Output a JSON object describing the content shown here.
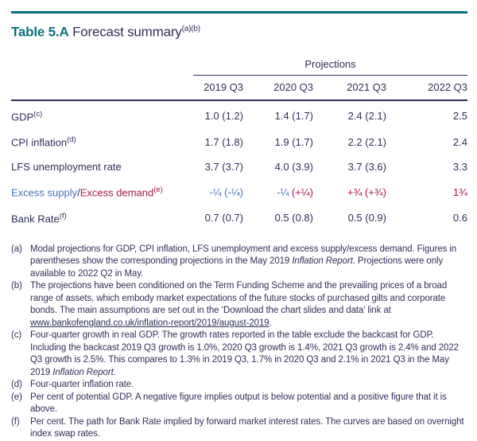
{
  "header": {
    "table_id": "Table 5.A",
    "title": "Forecast summary",
    "title_notes": "(a)(b)"
  },
  "table": {
    "projections_label": "Projections",
    "columns": [
      "2019 Q3",
      "2020 Q3",
      "2021 Q3",
      "2022 Q3"
    ],
    "rows": [
      {
        "name": "gdp",
        "label": [
          {
            "t": "GDP"
          }
        ],
        "sup": "(c)",
        "values": [
          [
            {
              "t": "1.0 (1.2)"
            }
          ],
          [
            {
              "t": "1.4 (1.7)"
            }
          ],
          [
            {
              "t": "2.4 (2.1)"
            }
          ],
          [
            {
              "t": "2.5"
            }
          ]
        ]
      },
      {
        "name": "cpi-inflation",
        "label": [
          {
            "t": "CPI inflation"
          }
        ],
        "sup": "(d)",
        "values": [
          [
            {
              "t": "1.7 (1.8)"
            }
          ],
          [
            {
              "t": "1.9 (1.7)"
            }
          ],
          [
            {
              "t": "2.2 (2.1)"
            }
          ],
          [
            {
              "t": "2.4"
            }
          ]
        ]
      },
      {
        "name": "lfs-unemployment-rate",
        "label": [
          {
            "t": "LFS unemployment rate"
          }
        ],
        "sup": "",
        "values": [
          [
            {
              "t": "3.7 (3.7)"
            }
          ],
          [
            {
              "t": "4.0 (3.9)"
            }
          ],
          [
            {
              "t": "3.7 (3.6)"
            }
          ],
          [
            {
              "t": "3.3"
            }
          ]
        ]
      },
      {
        "name": "excess-supply-excess-demand",
        "label": [
          {
            "t": "Excess supply",
            "c": "blue"
          },
          {
            "t": "/"
          },
          {
            "t": "Excess demand",
            "c": "crimson"
          }
        ],
        "sup": "(e)",
        "sup_color": "crimson",
        "values": [
          [
            {
              "t": "-¼ (-¼)",
              "c": "blue"
            }
          ],
          [
            {
              "t": "-¼ ",
              "c": "blue"
            },
            {
              "t": "(+¼)",
              "c": "crimson"
            }
          ],
          [
            {
              "t": "+¾ (+¾)",
              "c": "crimson"
            }
          ],
          [
            {
              "t": "1¾",
              "c": "crimson"
            }
          ]
        ]
      },
      {
        "name": "bank-rate",
        "label": [
          {
            "t": "Bank Rate"
          }
        ],
        "sup": "(f)",
        "values": [
          [
            {
              "t": "0.7 (0.7)"
            }
          ],
          [
            {
              "t": "0.5 (0.8)"
            }
          ],
          [
            {
              "t": "0.5 (0.9)"
            }
          ],
          [
            {
              "t": "0.6"
            }
          ]
        ]
      }
    ]
  },
  "footnotes": [
    {
      "marker": "(a)",
      "segments": [
        {
          "t": "Modal projections for GDP, CPI inflation, LFS unemployment and excess supply/excess demand. Figures in parentheses show the corresponding projections in the May 2019 "
        },
        {
          "t": "Inflation Report",
          "s": "i"
        },
        {
          "t": ". Projections were only available to 2022 Q2 in May."
        }
      ]
    },
    {
      "marker": "(b)",
      "segments": [
        {
          "t": "The projections have been conditioned on the Term Funding Scheme and the prevailing prices of a broad range of assets, which embody market expectations of the future stocks of purchased gilts and corporate bonds. The main assumptions are set out in the ‘Download the chart slides and data’ link at "
        },
        {
          "t": "www.bankofengland.co.uk/inflation-report/2019/august-2019",
          "s": "link"
        },
        {
          "t": "."
        }
      ]
    },
    {
      "marker": "(c)",
      "segments": [
        {
          "t": "Four-quarter growth in real GDP. The growth rates reported in the table exclude the backcast for GDP. Including the backcast 2019 Q3 growth is 1.0%, 2020 Q3 growth is 1.4%, 2021 Q3 growth is 2.4% and 2022 Q3 growth is 2.5%. This compares to 1.3% in 2019 Q3, 1.7% in 2020 Q3 and 2.1% in 2021 Q3 in the May 2019 "
        },
        {
          "t": "Inflation Report",
          "s": "i"
        },
        {
          "t": "."
        }
      ]
    },
    {
      "marker": "(d)",
      "segments": [
        {
          "t": "Four-quarter inflation rate."
        }
      ]
    },
    {
      "marker": "(e)",
      "segments": [
        {
          "t": "Per cent of potential GDP. A negative figure implies output is below potential and a positive figure that it is above."
        }
      ]
    },
    {
      "marker": "(f)",
      "segments": [
        {
          "t": "Per cent. The path for Bank Rate implied by forward market interest rates. The curves are based on overnight index swap rates."
        }
      ]
    }
  ],
  "colors": {
    "teal": "#0d6e7d",
    "navy": "#30305a",
    "blue": "#4472b8",
    "crimson": "#a81450"
  }
}
